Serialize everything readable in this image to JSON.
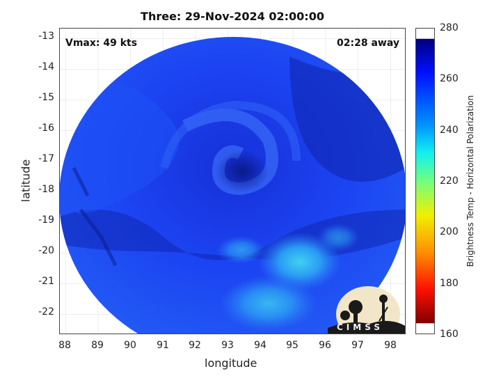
{
  "title": "Three: 29-Nov-2024 02:00:00",
  "vmax_label": "Vmax: 49 kts",
  "time_away": "02:28 away",
  "xaxis": {
    "label": "longitude",
    "ticks": [
      "88",
      "89",
      "90",
      "91",
      "92",
      "93",
      "94",
      "95",
      "96",
      "97",
      "98"
    ]
  },
  "yaxis": {
    "label": "latitude",
    "ticks": [
      "-13",
      "-14",
      "-15",
      "-16",
      "-17",
      "-18",
      "-19",
      "-20",
      "-21",
      "-22"
    ]
  },
  "colorbar": {
    "label": "Brightness Temp - Horizontal Polarization",
    "ticks": [
      "280",
      "260",
      "240",
      "220",
      "200",
      "180",
      "160"
    ],
    "range": [
      160,
      280
    ]
  },
  "logo": {
    "text": "CIMSS"
  },
  "colors": {
    "disk_base": "#1a3cf0",
    "dark_band": "#0c1f9c",
    "bright_area": "#3cc8f0"
  }
}
